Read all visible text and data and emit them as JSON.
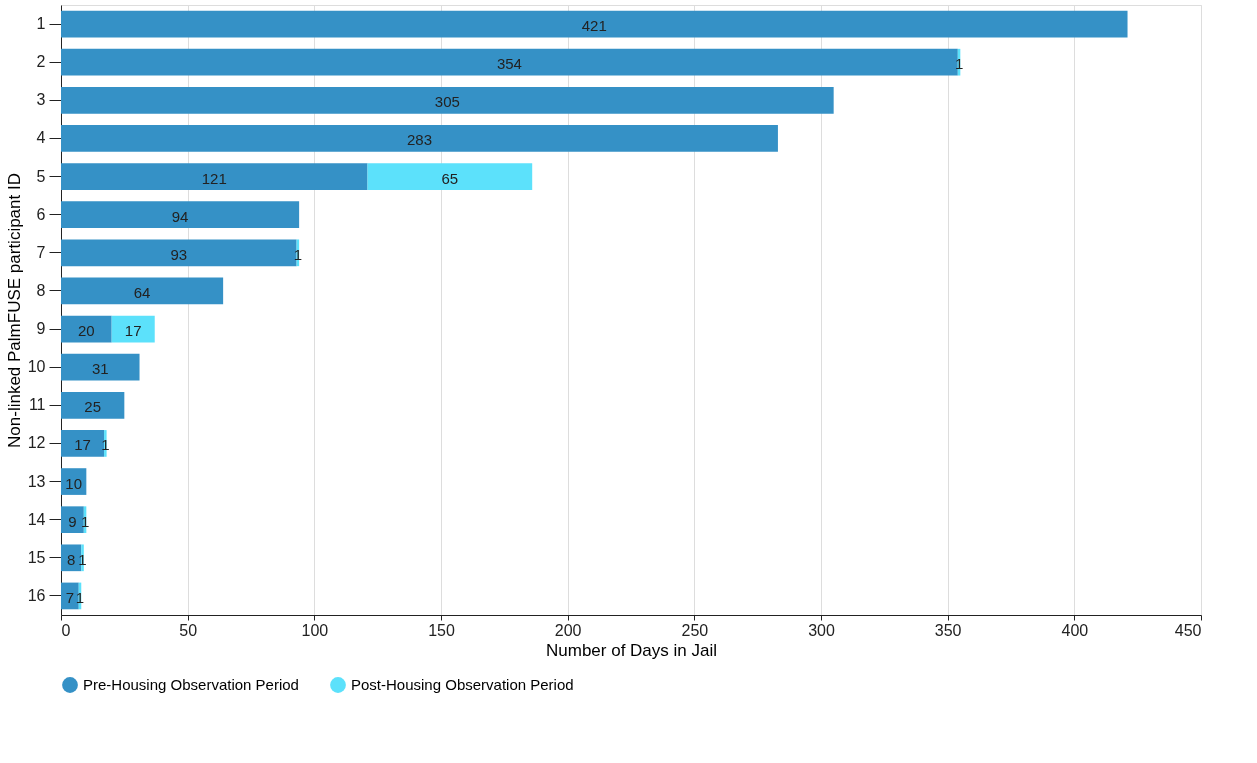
{
  "chart_data": {
    "type": "bar",
    "orientation": "horizontal",
    "stacked": true,
    "xlabel": "Number of Days in Jail",
    "ylabel": "Non-linked PalmFUSE participant ID",
    "categories": [
      "1",
      "2",
      "3",
      "4",
      "5",
      "6",
      "7",
      "8",
      "9",
      "10",
      "11",
      "12",
      "13",
      "14",
      "15",
      "16"
    ],
    "series": [
      {
        "name": "Pre-Housing Observation Period",
        "color": "#3591c6",
        "values": [
          421,
          354,
          305,
          283,
          121,
          94,
          93,
          64,
          20,
          31,
          25,
          17,
          10,
          9,
          8,
          7
        ]
      },
      {
        "name": "Post-Housing Observation Period",
        "color": "#5ce1fb",
        "values": [
          null,
          1,
          null,
          null,
          65,
          null,
          1,
          null,
          17,
          null,
          null,
          1,
          null,
          1,
          1,
          1
        ]
      }
    ],
    "xlim": [
      0,
      450
    ],
    "xticks": [
      0,
      50,
      100,
      150,
      200,
      250,
      300,
      350,
      400,
      450
    ],
    "grid": "x",
    "legend": "bottom",
    "data_labels": true
  }
}
